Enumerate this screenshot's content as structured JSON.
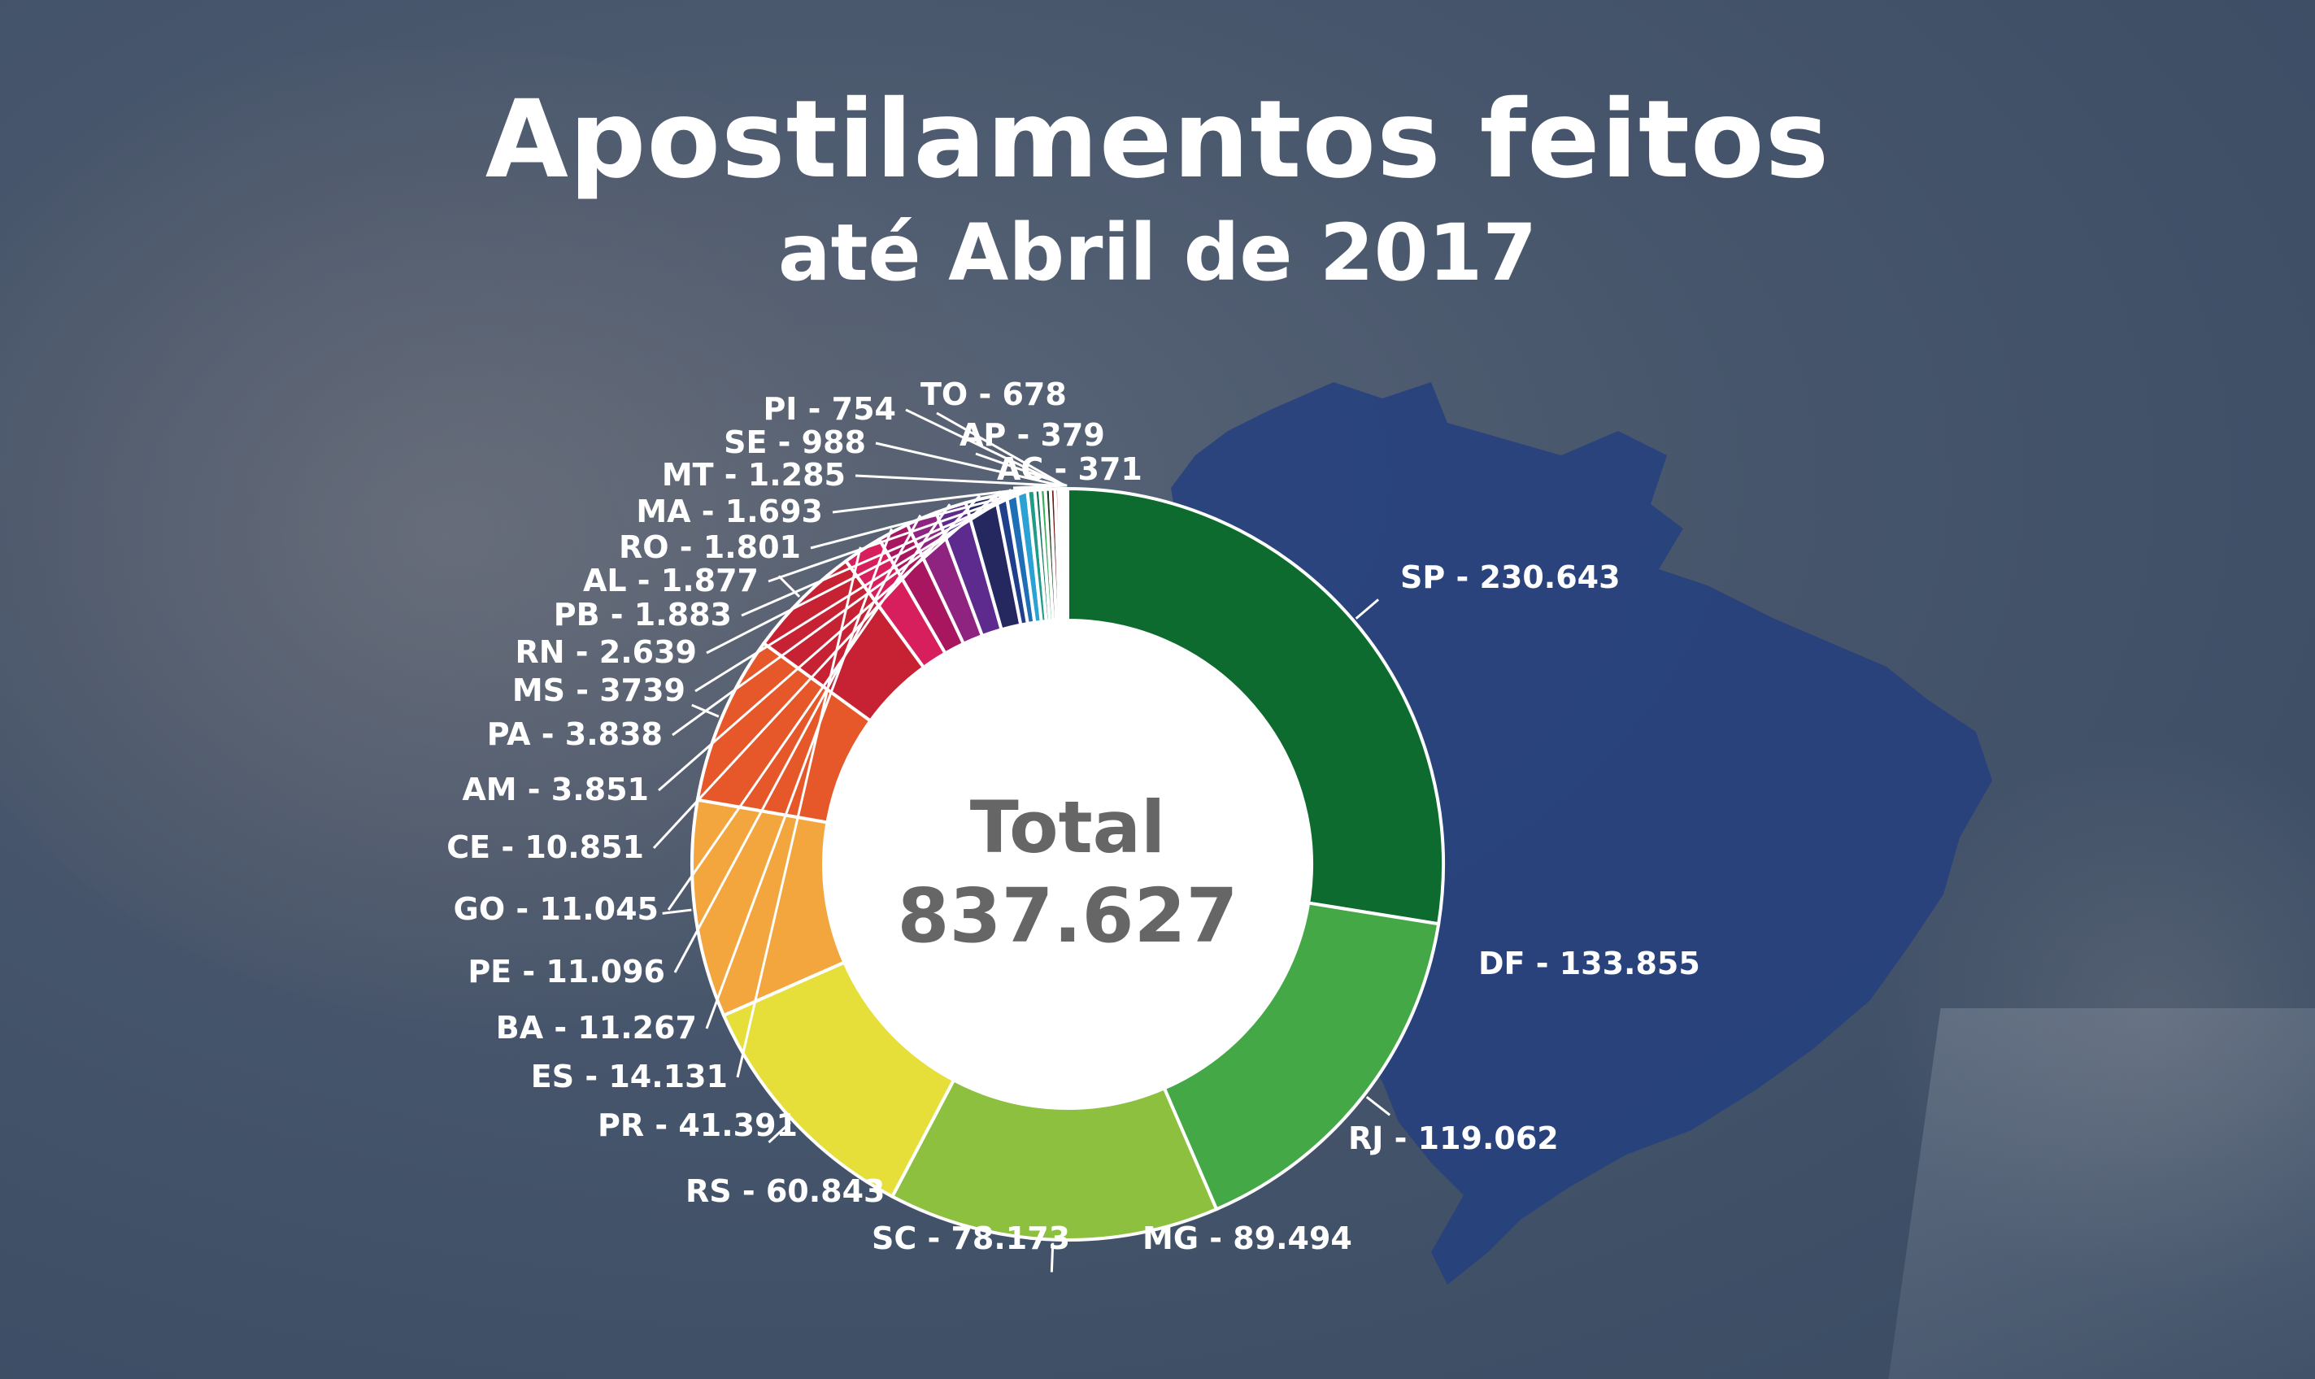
{
  "header": {
    "title": "Apostilamentos feitos",
    "subtitle": "até Abril de 2017"
  },
  "center": {
    "label": "Total",
    "value": "837.627"
  },
  "chart_data": {
    "type": "pie",
    "title": "Apostilamentos feitos",
    "subtitle": "até Abril de 2017",
    "total": 837627,
    "slices": [
      {
        "state": "SP",
        "label": "SP - 230.643",
        "value": 230643,
        "color": "#0e6b2f"
      },
      {
        "state": "DF",
        "label": "DF - 133.855",
        "value": 133855,
        "color": "#45a846"
      },
      {
        "state": "RJ",
        "label": "RJ - 119.062",
        "value": 119062,
        "color": "#8dc03e"
      },
      {
        "state": "MG",
        "label": "MG - 89.494",
        "value": 89494,
        "color": "#e6df3a"
      },
      {
        "state": "SC",
        "label": "SC - 78.173",
        "value": 78173,
        "color": "#f3a63d"
      },
      {
        "state": "RS",
        "label": "RS - 60.843",
        "value": 60843,
        "color": "#e6572a"
      },
      {
        "state": "PR",
        "label": "PR - 41.391",
        "value": 41391,
        "color": "#c62233"
      },
      {
        "state": "ES",
        "label": "ES - 14.131",
        "value": 14131,
        "color": "#d81f5d"
      },
      {
        "state": "BA",
        "label": "BA - 11.267",
        "value": 11267,
        "color": "#a7165f"
      },
      {
        "state": "PE",
        "label": "PE - 11.096",
        "value": 11096,
        "color": "#8e2480"
      },
      {
        "state": "GO",
        "label": "GO - 11.045",
        "value": 11045,
        "color": "#5d2b8e"
      },
      {
        "state": "CE",
        "label": "CE - 10.851",
        "value": 10851,
        "color": "#24285f"
      },
      {
        "state": "AM",
        "label": "AM - 3.851",
        "value": 3851,
        "color": "#203f8a"
      },
      {
        "state": "PA",
        "label": "PA - 3.838",
        "value": 3838,
        "color": "#1e6fb8"
      },
      {
        "state": "MS",
        "label": "MS - 3739",
        "value": 3739,
        "color": "#2aa2d4"
      },
      {
        "state": "RN",
        "label": "RN - 2.639",
        "value": 2639,
        "color": "#1f9b8a"
      },
      {
        "state": "PB",
        "label": "PB - 1.883",
        "value": 1883,
        "color": "#147a62"
      },
      {
        "state": "AL",
        "label": "AL - 1.877",
        "value": 1877,
        "color": "#3aad5c"
      },
      {
        "state": "RO",
        "label": "RO - 1.801",
        "value": 1801,
        "color": "#163f1e"
      },
      {
        "state": "MA",
        "label": "MA - 1.693",
        "value": 1693,
        "color": "#6d1414"
      },
      {
        "state": "MT",
        "label": "MT - 1.285",
        "value": 1285,
        "color": "#c81e35"
      },
      {
        "state": "SE",
        "label": "SE - 988",
        "value": 988,
        "color": "#d91f6a"
      },
      {
        "state": "PI",
        "label": "PI - 754",
        "value": 754,
        "color": "#9a2891"
      },
      {
        "state": "TO",
        "label": "TO - 678",
        "value": 678,
        "color": "#2b2c6e"
      },
      {
        "state": "AP",
        "label": "AP - 379",
        "value": 379,
        "color": "#1ba0a3"
      },
      {
        "state": "AC",
        "label": "AC - 371",
        "value": 371,
        "color": "#29a55f"
      }
    ]
  }
}
